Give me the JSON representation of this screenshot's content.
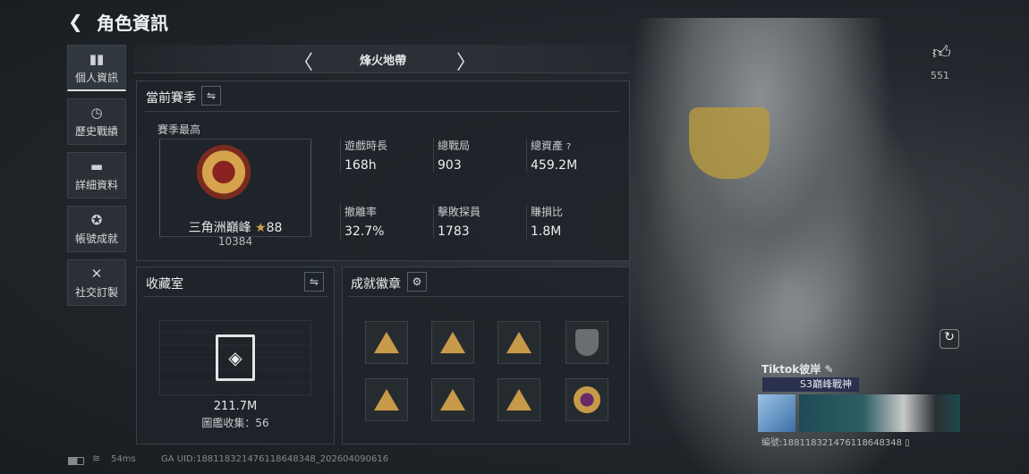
{
  "header": {
    "title": "角色資訊",
    "back_icon": "chevron-left-icon"
  },
  "sidebar": {
    "items": [
      {
        "label": "個人資訊",
        "icon": "bar-chart-icon",
        "active": true
      },
      {
        "label": "歷史戰績",
        "icon": "clock-icon"
      },
      {
        "label": "詳細資料",
        "icon": "folder-icon"
      },
      {
        "label": "帳號成就",
        "icon": "medal-icon"
      },
      {
        "label": "社交訂製",
        "icon": "tools-icon"
      }
    ]
  },
  "mode_nav": {
    "title": "烽火地帶"
  },
  "season": {
    "title": "當前賽季",
    "best_label": "賽季最高",
    "rank_name": "三角洲巔峰",
    "stars": "88",
    "rank_score": "10384",
    "stats": [
      {
        "label": "遊戲時長",
        "value": "168h"
      },
      {
        "label": "總戰局",
        "value": "903"
      },
      {
        "label": "總資產",
        "value": "459.2M",
        "help": "?"
      },
      {
        "label": "撤離率",
        "value": "32.7%"
      },
      {
        "label": "擊敗探員",
        "value": "1783"
      },
      {
        "label": "賺損比",
        "value": "1.8M"
      }
    ]
  },
  "collection": {
    "title": "收藏室",
    "value": "211.7M",
    "count_text": "圖鑑收集：56"
  },
  "achievements": {
    "title": "成就徽章",
    "badge_count": 8
  },
  "likes": {
    "count": "551"
  },
  "profile": {
    "name": "Tiktok彼岸",
    "title_badge": "S3巔峰戰神",
    "id_text": "編號:18811832147611864834​8"
  },
  "status": {
    "ping": "54ms",
    "uid": "GA UID:18811832147611864834​8_202604090616"
  },
  "colors": {
    "gold": "#c79a4a",
    "panel": "#1e2429"
  }
}
